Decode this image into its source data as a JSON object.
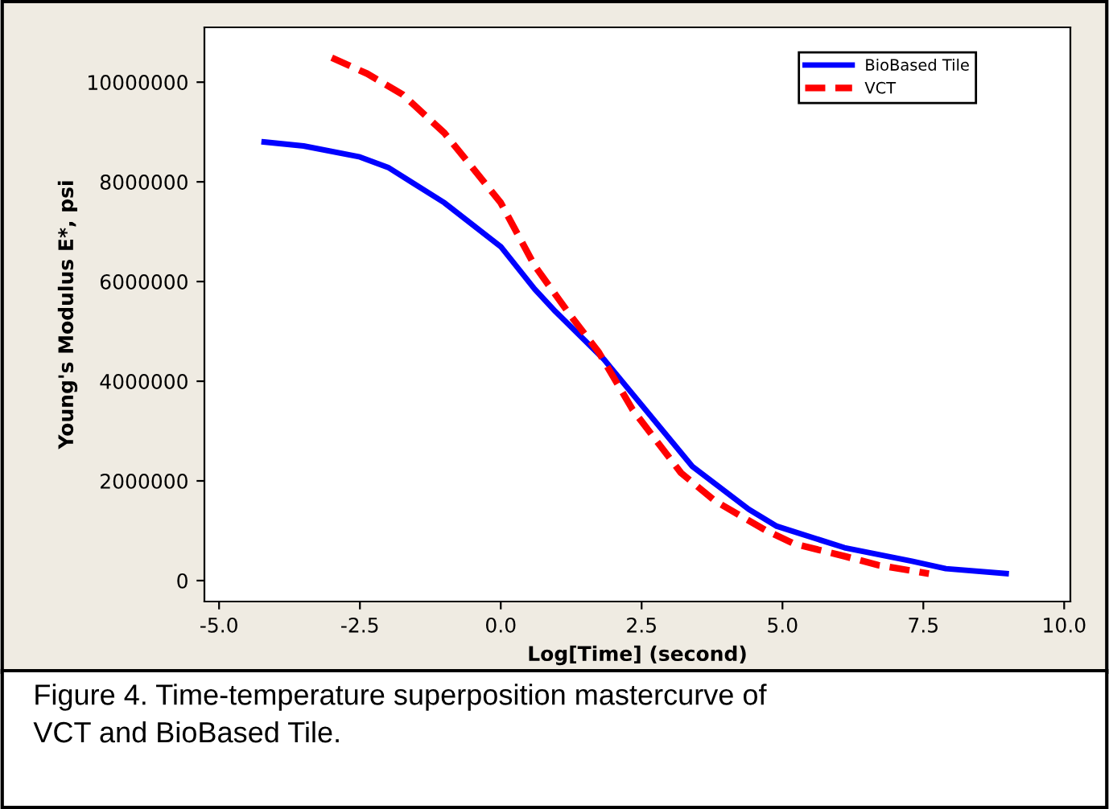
{
  "chart_data": {
    "type": "line",
    "xlabel": "Log[Time] (second)",
    "ylabel": "Young's Modulus E*, psi",
    "xlim": [
      -5.26,
      10.11
    ],
    "ylim": [
      -420000,
      11100000
    ],
    "xticks": [
      {
        "value": -5,
        "label": "-5.0"
      },
      {
        "value": -2.5,
        "label": "-2.5"
      },
      {
        "value": 0,
        "label": "0.0"
      },
      {
        "value": 2.5,
        "label": "2.5"
      },
      {
        "value": 5,
        "label": "5.0"
      },
      {
        "value": 7.5,
        "label": "7.5"
      },
      {
        "value": 10,
        "label": "10.0"
      }
    ],
    "yticks": [
      0,
      2000000,
      4000000,
      6000000,
      8000000,
      10000000
    ],
    "grid": false,
    "legend": "top right",
    "series": [
      {
        "name": "BioBased Tile",
        "color": "#0000ff",
        "line_style": "solid",
        "x": [
          -4.2,
          -3.5,
          -2.5,
          -2.0,
          -1.0,
          0.0,
          0.6,
          0.97,
          1.83,
          3.4,
          4.4,
          4.9,
          6.1,
          7.3,
          7.9,
          8.97
        ],
        "values": [
          8800000,
          8720000,
          8500000,
          8290000,
          7580000,
          6700000,
          5850000,
          5400000,
          4440000,
          2290000,
          1430000,
          1090000,
          660000,
          390000,
          240000,
          140000
        ]
      },
      {
        "name": "VCT",
        "color": "#ff0000",
        "line_style": "dashed",
        "x": [
          -3.0,
          -2.37,
          -1.74,
          -1.0,
          0.0,
          0.6,
          1.23,
          1.74,
          2.34,
          3.2,
          3.8,
          4.7,
          5.2,
          6.1,
          6.7,
          7.6
        ],
        "values": [
          10490000,
          10170000,
          9750000,
          8980000,
          7580000,
          6320000,
          5330000,
          4580000,
          3430000,
          2160000,
          1600000,
          1010000,
          740000,
          490000,
          310000,
          140000
        ]
      }
    ],
    "annotations": [
      "Figure 4. Time-temperature superposition mastercurve of\nVCT and BioBased Tile."
    ]
  }
}
